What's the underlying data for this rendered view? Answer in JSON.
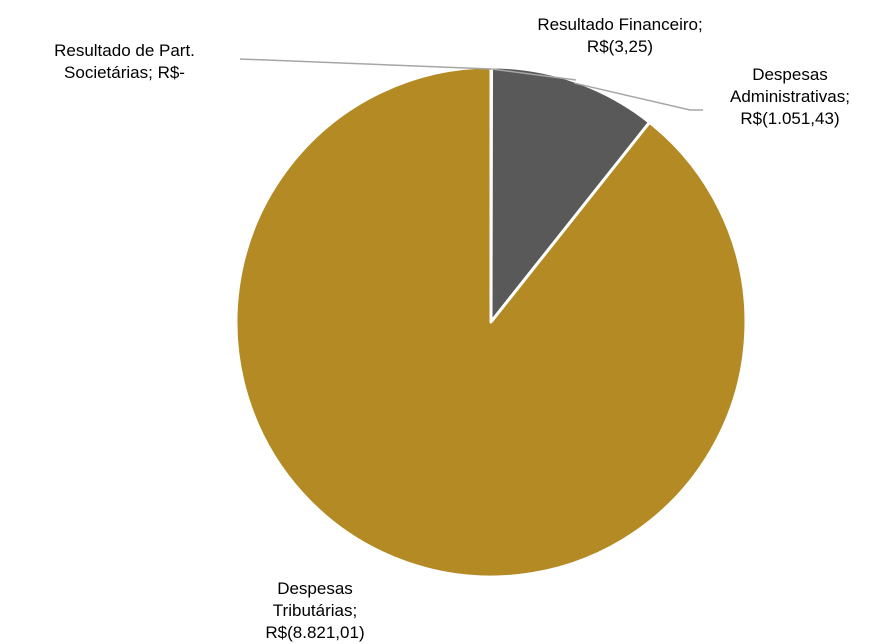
{
  "chart_data": {
    "type": "pie",
    "slices": [
      {
        "name": "Resultado Financeiro",
        "value": 3.25,
        "label_lines": [
          "Resultado Financeiro;",
          "R$(3,25)"
        ],
        "color": "#595959"
      },
      {
        "name": "Despesas Administrativas",
        "value": 1051.43,
        "label_lines": [
          "Despesas",
          "Administrativas;",
          "R$(1.051,43)"
        ],
        "color": "#595959"
      },
      {
        "name": "Despesas Tributárias",
        "value": 8821.01,
        "label_lines": [
          "Despesas",
          "Tributárias;",
          "R$(8.821,01)"
        ],
        "color": "#B38A23"
      },
      {
        "name": "Resultado de Part. Societárias",
        "value": 0,
        "label_lines": [
          "Resultado de Part.",
          "Societárias;  R$-"
        ],
        "color": "#B38A23"
      }
    ],
    "leader_line_color": "#A6A6A6",
    "slice_border_color": "#FFFFFF"
  }
}
